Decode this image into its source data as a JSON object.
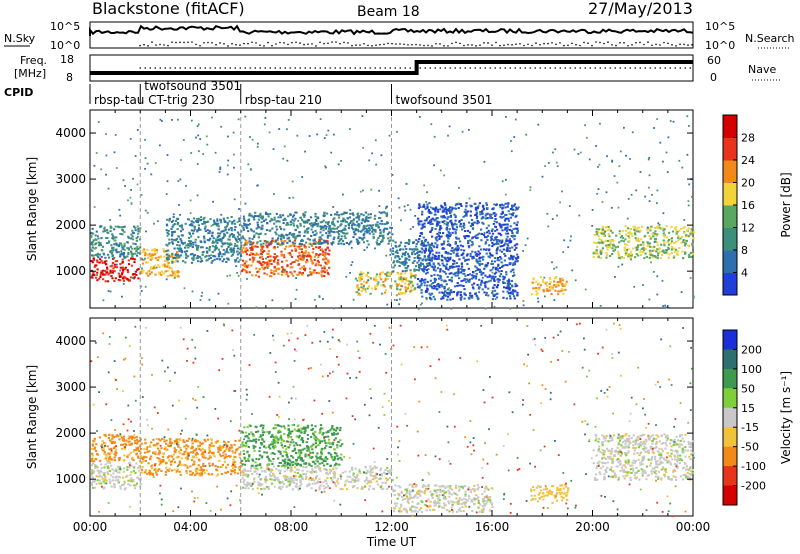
{
  "header": {
    "station": "Blackstone (fitACF)",
    "beam": "Beam 18",
    "date": "27/May/2013"
  },
  "aux_labels": {
    "nsky": "N.Sky",
    "nsearch": "N.Search",
    "freq_line1": "Freq.",
    "freq_line2": "[MHz]",
    "nave": "Nave",
    "cpid": "CPID",
    "nsky_ticks": [
      "10^5",
      "10^0"
    ],
    "nsearch_ticks": [
      "10^5",
      "10^0"
    ],
    "freq_ticks": [
      "18",
      "8"
    ],
    "nave_ticks": [
      "60",
      "0"
    ]
  },
  "cpid_segments": [
    {
      "label": "rbsp-tau CT-trig 230",
      "start": 0,
      "end": 2
    },
    {
      "label": "twofsound 3501",
      "start": 2,
      "end": 6
    },
    {
      "label": "rbsp-tau 210",
      "start": 6,
      "end": 12
    },
    {
      "label": "twofsound 3501",
      "start": 12,
      "end": 24
    }
  ],
  "chart_data": [
    {
      "type": "heatmap",
      "panel": "power",
      "xlabel": "",
      "ylabel": "Slant Range [km]",
      "xlim": [
        0,
        24
      ],
      "ylim": [
        200,
        4500
      ],
      "yticks": [
        "1000",
        "2000",
        "3000",
        "4000"
      ],
      "colorbar": {
        "label": "Power [dB]",
        "ticks": [
          "4",
          "8",
          "12",
          "16",
          "20",
          "24",
          "28"
        ],
        "colors": [
          "#1f3fd8",
          "#2e6fb0",
          "#3d8f7a",
          "#5aa860",
          "#f2d33a",
          "#f28a1a",
          "#e8341a",
          "#d40000"
        ]
      },
      "bands": [
        {
          "t0": 0.0,
          "t1": 2.0,
          "r0": 800,
          "r1": 1300,
          "level": 28
        },
        {
          "t0": 0.0,
          "t1": 2.0,
          "r0": 1300,
          "r1": 2000,
          "level": 10
        },
        {
          "t0": 2.0,
          "t1": 3.5,
          "r0": 900,
          "r1": 1500,
          "level": 20
        },
        {
          "t0": 3.0,
          "t1": 6.0,
          "r0": 1200,
          "r1": 2200,
          "level": 8
        },
        {
          "t0": 6.0,
          "t1": 9.5,
          "r0": 900,
          "r1": 1700,
          "level": 24
        },
        {
          "t0": 6.0,
          "t1": 12.0,
          "r0": 1600,
          "r1": 2300,
          "level": 8
        },
        {
          "t0": 10.5,
          "t1": 13.0,
          "r0": 500,
          "r1": 1000,
          "level": 18
        },
        {
          "t0": 12.0,
          "t1": 13.5,
          "r0": 1000,
          "r1": 1700,
          "level": 8
        },
        {
          "t0": 17.5,
          "t1": 19.0,
          "r0": 500,
          "r1": 900,
          "level": 20
        },
        {
          "t0": 20.0,
          "t1": 24.0,
          "r0": 1300,
          "r1": 2000,
          "level": 16
        },
        {
          "t0": 13.0,
          "t1": 17.0,
          "r0": 400,
          "r1": 2500,
          "level": 4
        }
      ]
    },
    {
      "type": "heatmap",
      "panel": "velocity",
      "xlabel": "Time UT",
      "ylabel": "Slant Range [km]",
      "xlim": [
        0,
        24
      ],
      "ylim": [
        200,
        4500
      ],
      "yticks": [
        "1000",
        "2000",
        "3000",
        "4000"
      ],
      "xticks": [
        "00:00",
        "04:00",
        "08:00",
        "12:00",
        "16:00",
        "20:00",
        "00:00"
      ],
      "colorbar": {
        "label": "Velocity [m s⁻¹]",
        "ticks": [
          "200",
          "100",
          "50",
          "15",
          "-15",
          "-50",
          "-100",
          "-200"
        ],
        "colors": [
          "#1a2fd8",
          "#2e6f6f",
          "#3d9a50",
          "#7ed03a",
          "#c8c8c8",
          "#f2c23a",
          "#f28a1a",
          "#e8341a",
          "#d40000"
        ]
      },
      "bands": [
        {
          "t0": 0.0,
          "t1": 2.0,
          "r0": 800,
          "r1": 1400,
          "level": 0
        },
        {
          "t0": 0.0,
          "t1": 2.0,
          "r0": 1400,
          "r1": 2000,
          "level": -60
        },
        {
          "t0": 2.0,
          "t1": 6.0,
          "r0": 1100,
          "r1": 1900,
          "level": -60
        },
        {
          "t0": 6.0,
          "t1": 10.0,
          "r0": 1300,
          "r1": 2200,
          "level": 60
        },
        {
          "t0": 6.0,
          "t1": 12.0,
          "r0": 800,
          "r1": 1300,
          "level": 0
        },
        {
          "t0": 12.0,
          "t1": 16.0,
          "r0": 300,
          "r1": 900,
          "level": 0
        },
        {
          "t0": 20.0,
          "t1": 24.0,
          "r0": 1000,
          "r1": 2000,
          "level": 0
        },
        {
          "t0": 17.5,
          "t1": 19.0,
          "r0": 500,
          "r1": 900,
          "level": -30
        }
      ]
    }
  ]
}
